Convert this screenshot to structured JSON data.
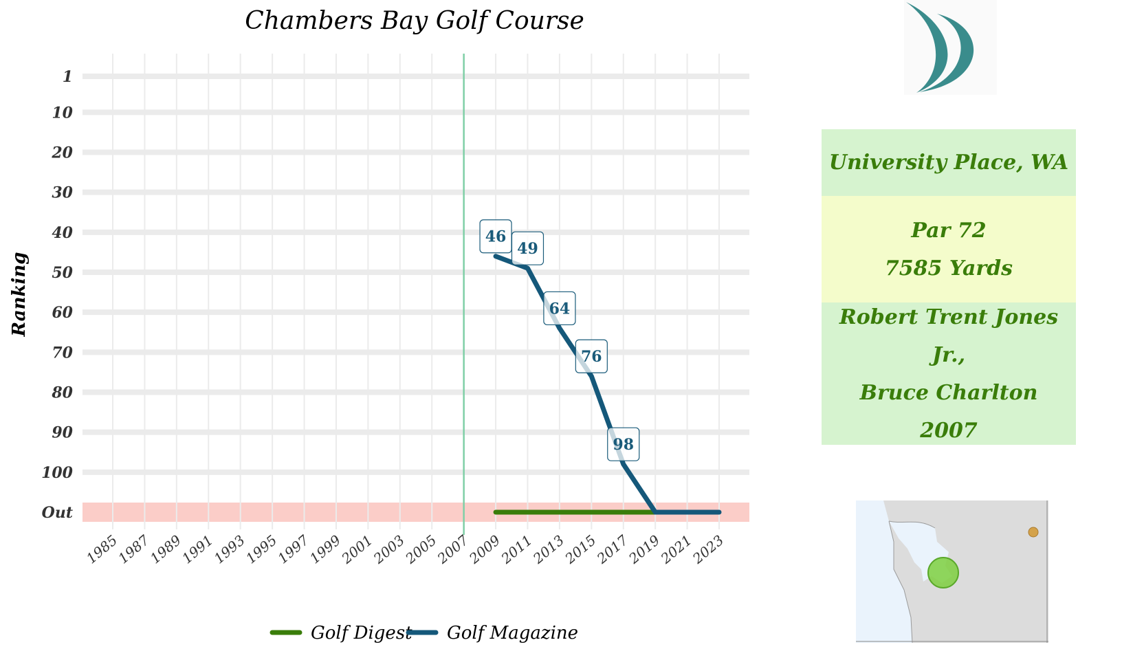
{
  "chart_data": {
    "type": "line",
    "title": "Chambers Bay Golf Course",
    "ylabel": "Ranking",
    "xlabel": "",
    "x_ticks": [
      "1985",
      "1987",
      "1989",
      "1991",
      "1993",
      "1995",
      "1997",
      "1999",
      "2001",
      "2003",
      "2005",
      "2007",
      "2009",
      "2011",
      "2013",
      "2015",
      "2017",
      "2019",
      "2021",
      "2023"
    ],
    "y_ticks": [
      "1",
      "10",
      "20",
      "30",
      "40",
      "50",
      "60",
      "70",
      "80",
      "90",
      "100",
      "Out"
    ],
    "y_tick_values": [
      1,
      10,
      20,
      30,
      40,
      50,
      60,
      70,
      80,
      90,
      100,
      110
    ],
    "xlim": [
      1984,
      2024
    ],
    "ylim_reversed": [
      1,
      110
    ],
    "out_band_color": "#fbcdc8",
    "opening_year": 2007,
    "opening_line_color": "#7fcfa6",
    "grid": true,
    "legend_position": "bottom",
    "series": [
      {
        "name": "Golf Digest",
        "color": "#3a7d0a",
        "x": [
          2009,
          2019
        ],
        "y": [
          "Out",
          "Out"
        ]
      },
      {
        "name": "Golf Magazine",
        "color": "#15587a",
        "x": [
          2009,
          2011,
          2013,
          2015,
          2017,
          2019,
          2023
        ],
        "y": [
          46,
          49,
          64,
          76,
          98,
          "Out",
          "Out"
        ]
      }
    ],
    "data_labels": [
      {
        "x": 2009,
        "y": 46,
        "text": "46"
      },
      {
        "x": 2011,
        "y": 49,
        "text": "49"
      },
      {
        "x": 2013,
        "y": 64,
        "text": "64"
      },
      {
        "x": 2015,
        "y": 76,
        "text": "76"
      },
      {
        "x": 2017,
        "y": 98,
        "text": "98"
      }
    ]
  },
  "info": {
    "location": "University Place, WA",
    "par": "Par 72",
    "yards": "7585 Yards",
    "architect_line1": "Robert Trent Jones Jr.,",
    "architect_line2": "Bruce Charlton",
    "year": "2007",
    "colors": {
      "location_bg": "#d6f3cf",
      "specs_bg": "#f4fccb",
      "architect_bg": "#d6f3cf",
      "text": "#3a7d0a"
    }
  },
  "logo": {
    "icon": "crescent-logo-icon",
    "color": "#3a8c8c"
  },
  "map": {
    "icon": "washington-state-map",
    "marker_color": "#7ecf3f",
    "dot_color": "#d4a24a"
  }
}
